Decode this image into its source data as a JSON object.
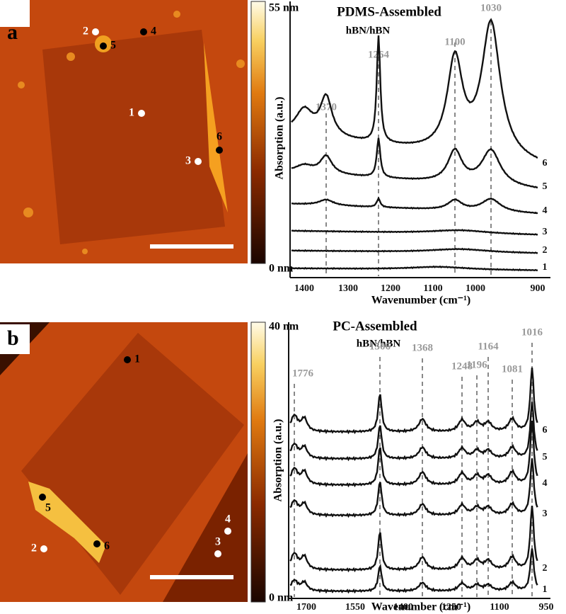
{
  "panel_a": {
    "label": "a",
    "image": {
      "scale_max": "55 nm",
      "scale_min": "0 nm",
      "markers": [
        "1",
        "2",
        "3",
        "4",
        "5",
        "6"
      ]
    },
    "spectrum": {
      "title": "PDMS-Assembled",
      "subtitle": "hBN/hBN",
      "peaks": [
        "1370",
        "1264",
        "1100",
        "1030"
      ],
      "traces": [
        "1",
        "2",
        "3",
        "4",
        "5",
        "6"
      ],
      "xticks": [
        "1400",
        "1300",
        "1200",
        "1100",
        "1000",
        "900"
      ],
      "xlabel": "Wavenumber (cm⁻¹)",
      "ylabel": "Absorption (a.u.)"
    }
  },
  "panel_b": {
    "label": "b",
    "image": {
      "scale_max": "40 nm",
      "scale_min": "0 nm",
      "markers": [
        "1",
        "2",
        "3",
        "4",
        "5",
        "6"
      ]
    },
    "spectrum": {
      "title": "PC-Assembled",
      "subtitle": "hBN/hBN",
      "peaks": [
        "1776",
        "1506",
        "1368",
        "1248",
        "1196",
        "1164",
        "1081",
        "1016"
      ],
      "traces": [
        "1",
        "2",
        "3",
        "4",
        "5",
        "6"
      ],
      "xticks": [
        "1700",
        "1550",
        "1400",
        "1250",
        "1100",
        "950"
      ],
      "xlabel": "Wavenumber (cm⁻¹)",
      "ylabel": "Absorption (a.u.)"
    }
  }
}
